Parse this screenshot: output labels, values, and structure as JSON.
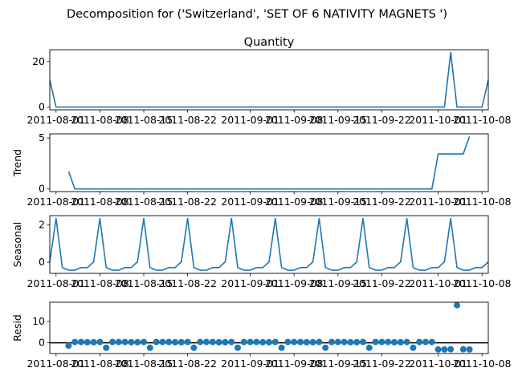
{
  "title": "Decomposition for ('Switzerland', 'SET OF 6 NATIVITY MAGNETS ')",
  "colors": {
    "series": "#1f77b4",
    "axis": "#000000",
    "zero_line": "#000000"
  },
  "chart_data": [
    {
      "type": "line",
      "title": "Quantity",
      "ylabel": "",
      "x": [
        "2011-07-31",
        "2011-08-01",
        "2011-08-02",
        "2011-08-03",
        "2011-08-04",
        "2011-08-05",
        "2011-08-06",
        "2011-08-07",
        "2011-08-08",
        "2011-08-09",
        "2011-08-10",
        "2011-08-11",
        "2011-08-12",
        "2011-08-13",
        "2011-08-14",
        "2011-08-15",
        "2011-08-16",
        "2011-08-17",
        "2011-08-18",
        "2011-08-19",
        "2011-08-20",
        "2011-08-21",
        "2011-08-22",
        "2011-08-23",
        "2011-08-24",
        "2011-08-25",
        "2011-08-26",
        "2011-08-27",
        "2011-08-28",
        "2011-08-29",
        "2011-08-30",
        "2011-08-31",
        "2011-09-01",
        "2011-09-02",
        "2011-09-03",
        "2011-09-04",
        "2011-09-05",
        "2011-09-06",
        "2011-09-07",
        "2011-09-08",
        "2011-09-09",
        "2011-09-10",
        "2011-09-11",
        "2011-09-12",
        "2011-09-13",
        "2011-09-14",
        "2011-09-15",
        "2011-09-16",
        "2011-09-17",
        "2011-09-18",
        "2011-09-19",
        "2011-09-20",
        "2011-09-21",
        "2011-09-22",
        "2011-09-23",
        "2011-09-24",
        "2011-09-25",
        "2011-09-26",
        "2011-09-27",
        "2011-09-28",
        "2011-09-29",
        "2011-09-30",
        "2011-10-01",
        "2011-10-02",
        "2011-10-03",
        "2011-10-04",
        "2011-10-05",
        "2011-10-06",
        "2011-10-07",
        "2011-10-08",
        "2011-10-09"
      ],
      "values": [
        12,
        0,
        0,
        0,
        0,
        0,
        0,
        0,
        0,
        0,
        0,
        0,
        0,
        0,
        0,
        0,
        0,
        0,
        0,
        0,
        0,
        0,
        0,
        0,
        0,
        0,
        0,
        0,
        0,
        0,
        0,
        0,
        0,
        0,
        0,
        0,
        0,
        0,
        0,
        0,
        0,
        0,
        0,
        0,
        0,
        0,
        0,
        0,
        0,
        0,
        0,
        0,
        0,
        0,
        0,
        0,
        0,
        0,
        0,
        0,
        0,
        0,
        0,
        0,
        24,
        0,
        0,
        0,
        0,
        0,
        12
      ],
      "xlim": [
        "2011-07-31",
        "2011-10-09"
      ],
      "ylim": [
        -1.2,
        25.2
      ],
      "yticks": [
        0,
        20
      ],
      "xticks": [
        "2011-08-01",
        "2011-08-08",
        "2011-08-15",
        "2011-08-22",
        "2011-09-01",
        "2011-09-08",
        "2011-09-15",
        "2011-09-22",
        "2011-10-01",
        "2011-10-08"
      ]
    },
    {
      "type": "line",
      "title": "",
      "ylabel": "Trend",
      "x": [
        "2011-08-03",
        "2011-08-04",
        "2011-08-05",
        "2011-08-06",
        "2011-08-07",
        "2011-08-08",
        "2011-08-09",
        "2011-08-10",
        "2011-08-11",
        "2011-08-12",
        "2011-08-13",
        "2011-08-14",
        "2011-08-15",
        "2011-08-16",
        "2011-08-17",
        "2011-08-18",
        "2011-08-19",
        "2011-08-20",
        "2011-08-21",
        "2011-08-22",
        "2011-08-23",
        "2011-08-24",
        "2011-08-25",
        "2011-08-26",
        "2011-08-27",
        "2011-08-28",
        "2011-08-29",
        "2011-08-30",
        "2011-08-31",
        "2011-09-01",
        "2011-09-02",
        "2011-09-03",
        "2011-09-04",
        "2011-09-05",
        "2011-09-06",
        "2011-09-07",
        "2011-09-08",
        "2011-09-09",
        "2011-09-10",
        "2011-09-11",
        "2011-09-12",
        "2011-09-13",
        "2011-09-14",
        "2011-09-15",
        "2011-09-16",
        "2011-09-17",
        "2011-09-18",
        "2011-09-19",
        "2011-09-20",
        "2011-09-21",
        "2011-09-22",
        "2011-09-23",
        "2011-09-24",
        "2011-09-25",
        "2011-09-26",
        "2011-09-27",
        "2011-09-28",
        "2011-09-29",
        "2011-09-30",
        "2011-10-01",
        "2011-10-02",
        "2011-10-03",
        "2011-10-04",
        "2011-10-05",
        "2011-10-06"
      ],
      "values": [
        1.714,
        0,
        0,
        0,
        0,
        0,
        0,
        0,
        0,
        0,
        0,
        0,
        0,
        0,
        0,
        0,
        0,
        0,
        0,
        0,
        0,
        0,
        0,
        0,
        0,
        0,
        0,
        0,
        0,
        0,
        0,
        0,
        0,
        0,
        0,
        0,
        0,
        0,
        0,
        0,
        0,
        0,
        0,
        0,
        0,
        0,
        0,
        0,
        0,
        0,
        0,
        0,
        0,
        0,
        0,
        0,
        0,
        0,
        0,
        3.429,
        3.429,
        3.429,
        3.429,
        3.429,
        5.143
      ],
      "xlim": [
        "2011-07-31",
        "2011-10-09"
      ],
      "ylim": [
        -0.26,
        5.4
      ],
      "yticks": [
        0,
        5
      ],
      "xticks": [
        "2011-08-01",
        "2011-08-08",
        "2011-08-15",
        "2011-08-22",
        "2011-09-01",
        "2011-09-08",
        "2011-09-15",
        "2011-09-22",
        "2011-10-01",
        "2011-10-08"
      ]
    },
    {
      "type": "line",
      "title": "",
      "ylabel": "Seasonal",
      "x_start": "2011-07-31",
      "pattern": [
        0.02,
        2.35,
        -0.29,
        -0.43,
        -0.43,
        -0.29,
        -0.29
      ],
      "length": 71,
      "xlim": [
        "2011-07-31",
        "2011-10-09"
      ],
      "ylim": [
        -0.6,
        2.5
      ],
      "yticks": [
        0,
        2
      ],
      "xticks": [
        "2011-08-01",
        "2011-08-08",
        "2011-08-15",
        "2011-08-22",
        "2011-09-01",
        "2011-09-08",
        "2011-09-15",
        "2011-09-22",
        "2011-10-01",
        "2011-10-08"
      ]
    },
    {
      "type": "scatter",
      "title": "",
      "ylabel": "Resid",
      "x": [
        "2011-08-03",
        "2011-08-04",
        "2011-08-05",
        "2011-08-06",
        "2011-08-07",
        "2011-08-08",
        "2011-08-09",
        "2011-08-10",
        "2011-08-11",
        "2011-08-12",
        "2011-08-13",
        "2011-08-14",
        "2011-08-15",
        "2011-08-16",
        "2011-08-17",
        "2011-08-18",
        "2011-08-19",
        "2011-08-20",
        "2011-08-21",
        "2011-08-22",
        "2011-08-23",
        "2011-08-24",
        "2011-08-25",
        "2011-08-26",
        "2011-08-27",
        "2011-08-28",
        "2011-08-29",
        "2011-08-30",
        "2011-08-31",
        "2011-09-01",
        "2011-09-02",
        "2011-09-03",
        "2011-09-04",
        "2011-09-05",
        "2011-09-06",
        "2011-09-07",
        "2011-09-08",
        "2011-09-09",
        "2011-09-10",
        "2011-09-11",
        "2011-09-12",
        "2011-09-13",
        "2011-09-14",
        "2011-09-15",
        "2011-09-16",
        "2011-09-17",
        "2011-09-18",
        "2011-09-19",
        "2011-09-20",
        "2011-09-21",
        "2011-09-22",
        "2011-09-23",
        "2011-09-24",
        "2011-09-25",
        "2011-09-26",
        "2011-09-27",
        "2011-09-28",
        "2011-09-29",
        "2011-09-30",
        "2011-10-01",
        "2011-10-02",
        "2011-10-03",
        "2011-10-04",
        "2011-10-05",
        "2011-10-06"
      ],
      "values": [
        -1.3,
        0.4,
        0.4,
        0.3,
        0.3,
        0.4,
        -2.3,
        0.4,
        0.4,
        0.4,
        0.3,
        0.3,
        0.4,
        -2.3,
        0.4,
        0.4,
        0.4,
        0.3,
        0.3,
        0.4,
        -2.3,
        0.4,
        0.4,
        0.4,
        0.3,
        0.3,
        0.4,
        -2.3,
        0.4,
        0.4,
        0.4,
        0.3,
        0.3,
        0.4,
        -2.3,
        0.4,
        0.4,
        0.4,
        0.3,
        0.3,
        0.4,
        -2.3,
        0.4,
        0.4,
        0.4,
        0.3,
        0.3,
        0.4,
        -2.3,
        0.4,
        0.4,
        0.4,
        0.3,
        0.3,
        0.4,
        -2.3,
        0.4,
        0.4,
        0.4,
        -3.1,
        -3.1,
        -3.0,
        17.6,
        -3.0,
        -3.1
      ],
      "xlim": [
        "2011-07-31",
        "2011-10-09"
      ],
      "ylim": [
        -5,
        19
      ],
      "yticks": [
        0,
        10
      ],
      "zero_line": true,
      "xticks": [
        "2011-08-01",
        "2011-08-08",
        "2011-08-15",
        "2011-08-22",
        "2011-09-01",
        "2011-09-08",
        "2011-09-15",
        "2011-09-22",
        "2011-10-01",
        "2011-10-08"
      ]
    }
  ]
}
